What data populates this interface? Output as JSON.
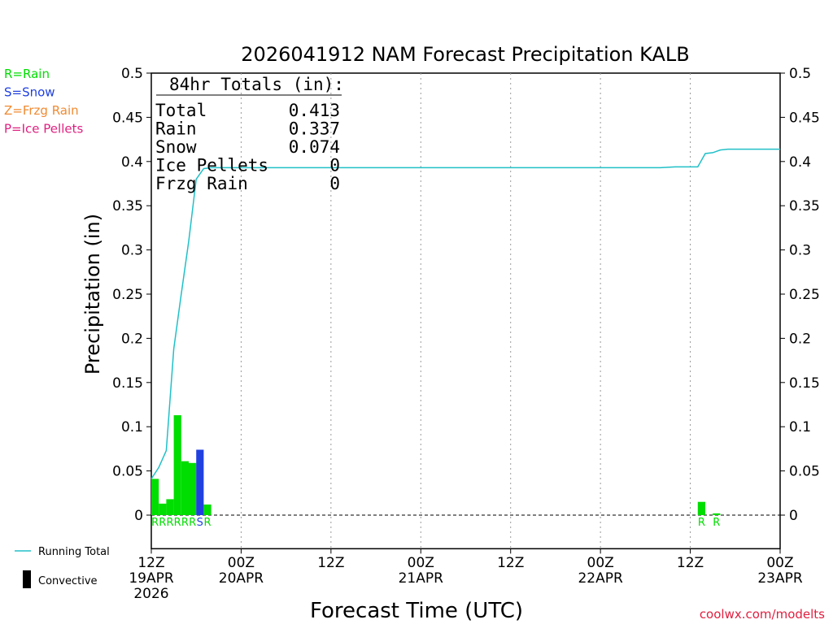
{
  "chart_data": {
    "type": "bar",
    "title": "2026041912 NAM Forecast Precipitation KALB",
    "xlabel": "Forecast Time (UTC)",
    "ylabel": "Precipitation (in)",
    "ylim": [
      0,
      0.5
    ],
    "ylim_extended_below": -0.038,
    "xlim_hours": [
      0,
      84
    ],
    "y_ticks": [
      0,
      0.05,
      0.1,
      0.15,
      0.2,
      0.25,
      0.3,
      0.35,
      0.4,
      0.45,
      0.5
    ],
    "y_tick_labels": [
      "0",
      "0.05",
      "0.1",
      "0.15",
      "0.2",
      "0.25",
      "0.3",
      "0.35",
      "0.4",
      "0.45",
      "0.5"
    ],
    "x_ticks": [
      {
        "hour": 0,
        "lines": [
          "12Z",
          "19APR",
          "2026"
        ]
      },
      {
        "hour": 12,
        "lines": [
          "00Z",
          "20APR"
        ]
      },
      {
        "hour": 24,
        "lines": [
          "12Z"
        ]
      },
      {
        "hour": 36,
        "lines": [
          "00Z",
          "21APR"
        ]
      },
      {
        "hour": 48,
        "lines": [
          "12Z"
        ]
      },
      {
        "hour": 60,
        "lines": [
          "00Z",
          "22APR"
        ]
      },
      {
        "hour": 72,
        "lines": [
          "12Z"
        ]
      },
      {
        "hour": 84,
        "lines": [
          "00Z",
          "23APR"
        ]
      }
    ],
    "grid": "dotted vertical at 12h intervals",
    "bars": [
      {
        "hour": 0,
        "value": 0.041,
        "type": "R"
      },
      {
        "hour": 1,
        "value": 0.013,
        "type": "R"
      },
      {
        "hour": 2,
        "value": 0.018,
        "type": "R"
      },
      {
        "hour": 3,
        "value": 0.113,
        "type": "R"
      },
      {
        "hour": 4,
        "value": 0.061,
        "type": "R"
      },
      {
        "hour": 5,
        "value": 0.059,
        "type": "R"
      },
      {
        "hour": 6,
        "value": 0.074,
        "type": "S"
      },
      {
        "hour": 7,
        "value": 0.012,
        "type": "R"
      },
      {
        "hour": 73,
        "value": 0.015,
        "type": "R"
      },
      {
        "hour": 75,
        "value": 0.002,
        "type": "R"
      }
    ],
    "running_total": [
      [
        0,
        0.041
      ],
      [
        1,
        0.054
      ],
      [
        2,
        0.073
      ],
      [
        3,
        0.188
      ],
      [
        4,
        0.25
      ],
      [
        5,
        0.31
      ],
      [
        6,
        0.38
      ],
      [
        7,
        0.392
      ],
      [
        8,
        0.393
      ],
      [
        12,
        0.393
      ],
      [
        24,
        0.393
      ],
      [
        36,
        0.393
      ],
      [
        48,
        0.393
      ],
      [
        68,
        0.393
      ],
      [
        70,
        0.394
      ],
      [
        73,
        0.394
      ],
      [
        74,
        0.409
      ],
      [
        75,
        0.41
      ],
      [
        76,
        0.413
      ],
      [
        77,
        0.414
      ],
      [
        84,
        0.414
      ]
    ],
    "totals_box": {
      "heading": "84hr Totals (in):",
      "rows": [
        {
          "label": "Total",
          "value": "0.413"
        },
        {
          "label": "Rain",
          "value": "0.337"
        },
        {
          "label": "Snow",
          "value": "0.074"
        },
        {
          "label": "Ice Pellets",
          "value": "0"
        },
        {
          "label": "Frzg Rain",
          "value": "0"
        }
      ]
    },
    "legend": [
      {
        "text": "R=Rain",
        "color": "#00dd00"
      },
      {
        "text": "S=Snow",
        "color": "#2040e0"
      },
      {
        "text": "Z=Frzg Rain",
        "color": "#f08a30"
      },
      {
        "text": "P=Ice Pellets",
        "color": "#e02080"
      }
    ],
    "key": [
      {
        "text": "Running Total",
        "color": "#20c0c8",
        "kind": "line"
      },
      {
        "text": "Convective",
        "color": "#000000",
        "kind": "bar"
      }
    ],
    "colors": {
      "R": "#00dd00",
      "S": "#2040e0",
      "Z": "#f08a30",
      "P": "#e02080",
      "running_total": "#20c0c8"
    },
    "credit": "coolwx.com/modelts"
  }
}
